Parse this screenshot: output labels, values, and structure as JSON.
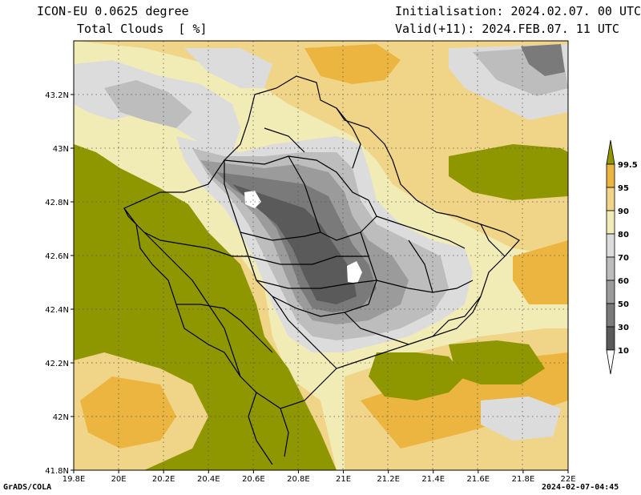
{
  "header": {
    "model": "ICON-EU 0.0625 degree",
    "variable": "Total Clouds  [ %]",
    "initialisation": "Initialisation: 2024.02.07. 00 UTC",
    "valid": "Valid(+11): 2024.FEB.07. 11 UTC"
  },
  "map": {
    "lon_range": [
      19.8,
      22.0
    ],
    "lat_range": [
      41.8,
      43.4
    ],
    "x_ticks": [
      "19.8E",
      "20E",
      "20.2E",
      "20.4E",
      "20.6E",
      "20.8E",
      "21E",
      "21.2E",
      "21.4E",
      "21.6E",
      "21.8E",
      "22E"
    ],
    "y_ticks": [
      "41.8N",
      "42N",
      "42.2N",
      "42.4N",
      "42.6N",
      "42.8N",
      "43N",
      "43.2N"
    ],
    "grid": "dotted"
  },
  "legend": {
    "levels": [
      "10",
      "30",
      "50",
      "60",
      "70",
      "80",
      "90",
      "95",
      "99.5"
    ],
    "colors": {
      "below_10": "#ffffff",
      "c10_30": "#5a5a5a",
      "c30_50": "#7a7a7a",
      "c50_60": "#9b9b9b",
      "c60_70": "#bdbdbd",
      "c70_80": "#dcdcdc",
      "c80_90": "#f1ecb6",
      "c90_95": "#f0d487",
      "c95_99": "#ebb53f",
      "above_99_5": "#8e9600"
    }
  },
  "footer": {
    "left": "GrADS/COLA",
    "right": "2024-02-07-04:45"
  }
}
